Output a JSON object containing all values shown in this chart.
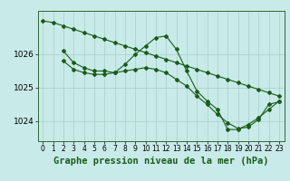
{
  "bg_color": "#c8eae8",
  "grid_color": "#a0c8c0",
  "line_color": "#1a5c1a",
  "title": "Graphe pression niveau de la mer (hPa)",
  "title_fontsize": 7.5,
  "xlabel_tick_fontsize": 5.5,
  "ylabel_tick_fontsize": 6.5,
  "ylim": [
    1023.4,
    1027.3
  ],
  "xlim": [
    -0.5,
    23.5
  ],
  "yticks": [
    1024,
    1025,
    1026
  ],
  "xticks": [
    0,
    1,
    2,
    3,
    4,
    5,
    6,
    7,
    8,
    9,
    10,
    11,
    12,
    13,
    14,
    15,
    16,
    17,
    18,
    19,
    20,
    21,
    22,
    23
  ],
  "series1_x": [
    0,
    1,
    2,
    3,
    4,
    5,
    6,
    7,
    8,
    9,
    10,
    11,
    12,
    13,
    14,
    15,
    16,
    17,
    18,
    19,
    20,
    21,
    22,
    23
  ],
  "series1_y": [
    1027.0,
    1026.95,
    1026.85,
    1026.75,
    1026.65,
    1026.55,
    1026.45,
    1026.35,
    1026.25,
    1026.15,
    1026.05,
    1025.95,
    1025.85,
    1025.75,
    1025.65,
    1025.55,
    1025.45,
    1025.35,
    1025.25,
    1025.15,
    1025.05,
    1024.95,
    1024.85,
    1024.75
  ],
  "series2_x": [
    2,
    3,
    4,
    5,
    6,
    7,
    8,
    9,
    10,
    11,
    12,
    13,
    14,
    15,
    16,
    17,
    18,
    19,
    20,
    21,
    22,
    23
  ],
  "series2_y": [
    1026.1,
    1025.75,
    1025.6,
    1025.5,
    1025.5,
    1025.45,
    1025.7,
    1026.0,
    1026.25,
    1026.5,
    1026.55,
    1026.15,
    1025.5,
    1024.9,
    1024.6,
    1024.35,
    1023.75,
    1023.75,
    1023.9,
    1024.1,
    1024.35,
    1024.6
  ],
  "series3_x": [
    2,
    3,
    4,
    5,
    6,
    7,
    8,
    9,
    10,
    11,
    12,
    13,
    14,
    15,
    16,
    17,
    18,
    19,
    20,
    21,
    22,
    23
  ],
  "series3_y": [
    1025.8,
    1025.55,
    1025.45,
    1025.4,
    1025.4,
    1025.45,
    1025.5,
    1025.55,
    1025.6,
    1025.55,
    1025.45,
    1025.25,
    1025.05,
    1024.75,
    1024.5,
    1024.2,
    1023.95,
    1023.78,
    1023.82,
    1024.05,
    1024.5,
    1024.58
  ]
}
